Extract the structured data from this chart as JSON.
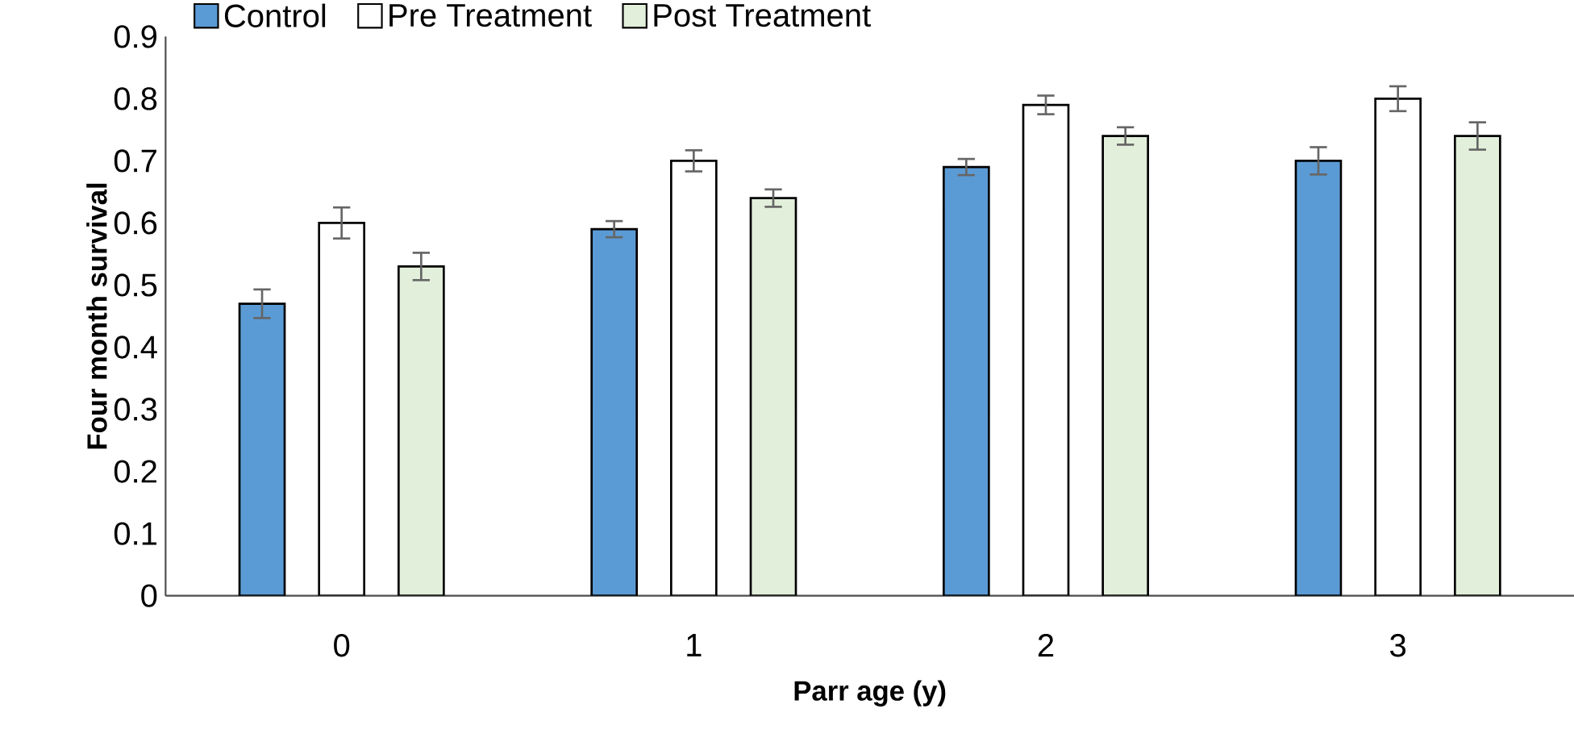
{
  "chart_data": {
    "type": "bar",
    "xlabel": "Parr age (y)",
    "ylabel": "Four month survival",
    "categories": [
      "0",
      "1",
      "2",
      "3"
    ],
    "series": [
      {
        "name": "Control",
        "color": "#5b9bd5",
        "values": [
          0.47,
          0.59,
          0.69,
          0.7
        ],
        "errors": [
          0.023,
          0.013,
          0.013,
          0.022
        ]
      },
      {
        "name": "Pre Treatment",
        "color": "#ffffff",
        "values": [
          0.6,
          0.7,
          0.79,
          0.8
        ],
        "errors": [
          0.025,
          0.017,
          0.015,
          0.02
        ]
      },
      {
        "name": "Post Treatment",
        "color": "#e2efda",
        "values": [
          0.53,
          0.64,
          0.74,
          0.74
        ],
        "errors": [
          0.022,
          0.014,
          0.014,
          0.022
        ]
      }
    ],
    "ylim": [
      0,
      0.9
    ],
    "yticks": [
      0,
      0.1,
      0.2,
      0.3,
      0.4,
      0.5,
      0.6,
      0.7,
      0.8,
      0.9
    ],
    "legend": "top"
  }
}
